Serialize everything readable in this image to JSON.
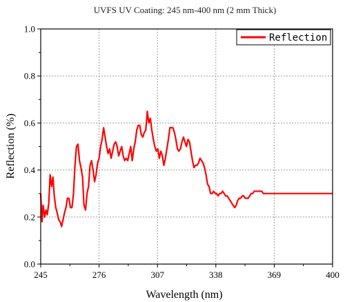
{
  "chart_data": {
    "type": "line",
    "title": "UVFS UV Coating: 245 nm-400 nm (2 mm Thick)",
    "xlabel": "Wavelength (nm)",
    "ylabel": "Reflection (%)",
    "xlim": [
      245,
      400
    ],
    "ylim": [
      0.0,
      1.0
    ],
    "xticks": [
      245,
      276,
      307,
      338,
      369,
      400
    ],
    "yticks": [
      0.0,
      0.2,
      0.4,
      0.6,
      0.8,
      1.0
    ],
    "xtick_labels": [
      "245",
      "276",
      "307",
      "338",
      "369",
      "400"
    ],
    "ytick_labels": [
      "0.0",
      "0.2",
      "0.4",
      "0.6",
      "0.8",
      "1.0"
    ],
    "grid": true,
    "legend_position": "top-right",
    "series": [
      {
        "name": "Reflection",
        "color": "#ff0000",
        "x": [
          245,
          245.7,
          246.3,
          247.1,
          247.8,
          248.5,
          249.3,
          250.0,
          250.8,
          251.5,
          252.2,
          253.0,
          253.7,
          254.5,
          255.3,
          256.1,
          256.9,
          257.7,
          258.4,
          259.2,
          260.0,
          260.8,
          261.6,
          262.4,
          263.2,
          264.0,
          264.8,
          265.6,
          266.4,
          267.2,
          268.0,
          268.8,
          269.6,
          270.4,
          271.2,
          272.0,
          272.8,
          273.6,
          274.4,
          275.2,
          276.0,
          276.8,
          277.6,
          278.4,
          279.2,
          280.0,
          280.8,
          281.6,
          282.4,
          283.2,
          284.0,
          284.8,
          285.6,
          286.4,
          287.2,
          288.0,
          288.8,
          289.6,
          290.4,
          291.2,
          292.0,
          292.8,
          293.6,
          294.4,
          295.2,
          296.0,
          296.8,
          297.6,
          298.4,
          299.2,
          300.0,
          300.8,
          301.6,
          302.4,
          303.2,
          304.0,
          304.8,
          305.6,
          306.4,
          307.2,
          308.0,
          308.8,
          309.6,
          310.4,
          311.2,
          312.0,
          312.8,
          313.6,
          314.4,
          315.2,
          316.0,
          316.8,
          317.6,
          318.4,
          319.2,
          320.0,
          320.8,
          321.6,
          322.4,
          323.2,
          324.0,
          324.8,
          325.6,
          326.4,
          327.2,
          328.0,
          328.8,
          329.6,
          330.4,
          331.2,
          332.0,
          332.8,
          333.6,
          334.4,
          335.2,
          336.0,
          336.8,
          337.6,
          338.4,
          339.2,
          340.0,
          340.8,
          341.6,
          342.4,
          343.2,
          344.0,
          344.8,
          345.6,
          346.4,
          347.2,
          348.0,
          348.8,
          349.6,
          350.4,
          351.2,
          352.0,
          352.8,
          353.6,
          354.4,
          355.2,
          356.0,
          356.8,
          357.6,
          358.4,
          359.2,
          360.0,
          360.8,
          361.6,
          362.4,
          363.2,
          364.0,
          364.8,
          365.6,
          366.4,
          367.2,
          368.0,
          368.8,
          369.6,
          370.4,
          371.2,
          372.0,
          372.8,
          373.6,
          374.4,
          375.2,
          376.0,
          376.8,
          377.6,
          378.4,
          379.2,
          380.0,
          380.8,
          381.6,
          382.4,
          383.2,
          384.0,
          384.8,
          385.6,
          386.4,
          387.2,
          388.0,
          388.8,
          389.6,
          390.4,
          391.2,
          392.0,
          392.8,
          393.6,
          394.4,
          395.2,
          396.0,
          396.8,
          397.6,
          398.4,
          399.2,
          400.0
        ],
        "y": [
          0.3,
          0.18,
          0.25,
          0.2,
          0.23,
          0.21,
          0.26,
          0.38,
          0.33,
          0.37,
          0.29,
          0.24,
          0.22,
          0.19,
          0.18,
          0.16,
          0.19,
          0.22,
          0.24,
          0.28,
          0.28,
          0.24,
          0.24,
          0.3,
          0.42,
          0.5,
          0.51,
          0.44,
          0.41,
          0.37,
          0.25,
          0.23,
          0.3,
          0.33,
          0.42,
          0.44,
          0.4,
          0.35,
          0.38,
          0.43,
          0.45,
          0.5,
          0.53,
          0.58,
          0.54,
          0.5,
          0.47,
          0.49,
          0.45,
          0.48,
          0.51,
          0.52,
          0.5,
          0.46,
          0.48,
          0.5,
          0.46,
          0.44,
          0.45,
          0.44,
          0.47,
          0.5,
          0.44,
          0.49,
          0.52,
          0.57,
          0.59,
          0.59,
          0.55,
          0.54,
          0.56,
          0.57,
          0.65,
          0.6,
          0.62,
          0.57,
          0.53,
          0.5,
          0.48,
          0.49,
          0.45,
          0.48,
          0.46,
          0.42,
          0.45,
          0.49,
          0.53,
          0.58,
          0.58,
          0.58,
          0.56,
          0.53,
          0.49,
          0.48,
          0.49,
          0.52,
          0.54,
          0.52,
          0.5,
          0.53,
          0.52,
          0.48,
          0.44,
          0.41,
          0.42,
          0.42,
          0.43,
          0.45,
          0.44,
          0.43,
          0.41,
          0.38,
          0.34,
          0.33,
          0.3,
          0.3,
          0.31,
          0.3,
          0.3,
          0.29,
          0.3,
          0.3,
          0.31,
          0.3,
          0.29,
          0.29,
          0.28,
          0.27,
          0.26,
          0.25,
          0.24,
          0.25,
          0.27,
          0.28,
          0.28,
          0.29,
          0.29,
          0.28,
          0.28,
          0.28,
          0.29,
          0.3,
          0.3,
          0.31,
          0.31,
          0.31,
          0.31,
          0.31,
          0.31,
          0.3,
          0.3,
          0.3,
          0.3,
          0.3,
          0.3,
          0.3,
          0.3,
          0.3,
          0.3,
          0.3,
          0.3,
          0.3,
          0.3,
          0.3,
          0.3,
          0.3,
          0.3,
          0.3,
          0.3,
          0.3,
          0.3,
          0.3,
          0.3,
          0.3,
          0.3,
          0.3,
          0.3,
          0.3,
          0.3,
          0.3,
          0.3,
          0.3,
          0.3,
          0.3,
          0.3,
          0.3,
          0.3,
          0.3,
          0.3,
          0.3,
          0.3,
          0.3,
          0.3,
          0.3,
          0.3,
          0.3
        ]
      }
    ]
  }
}
